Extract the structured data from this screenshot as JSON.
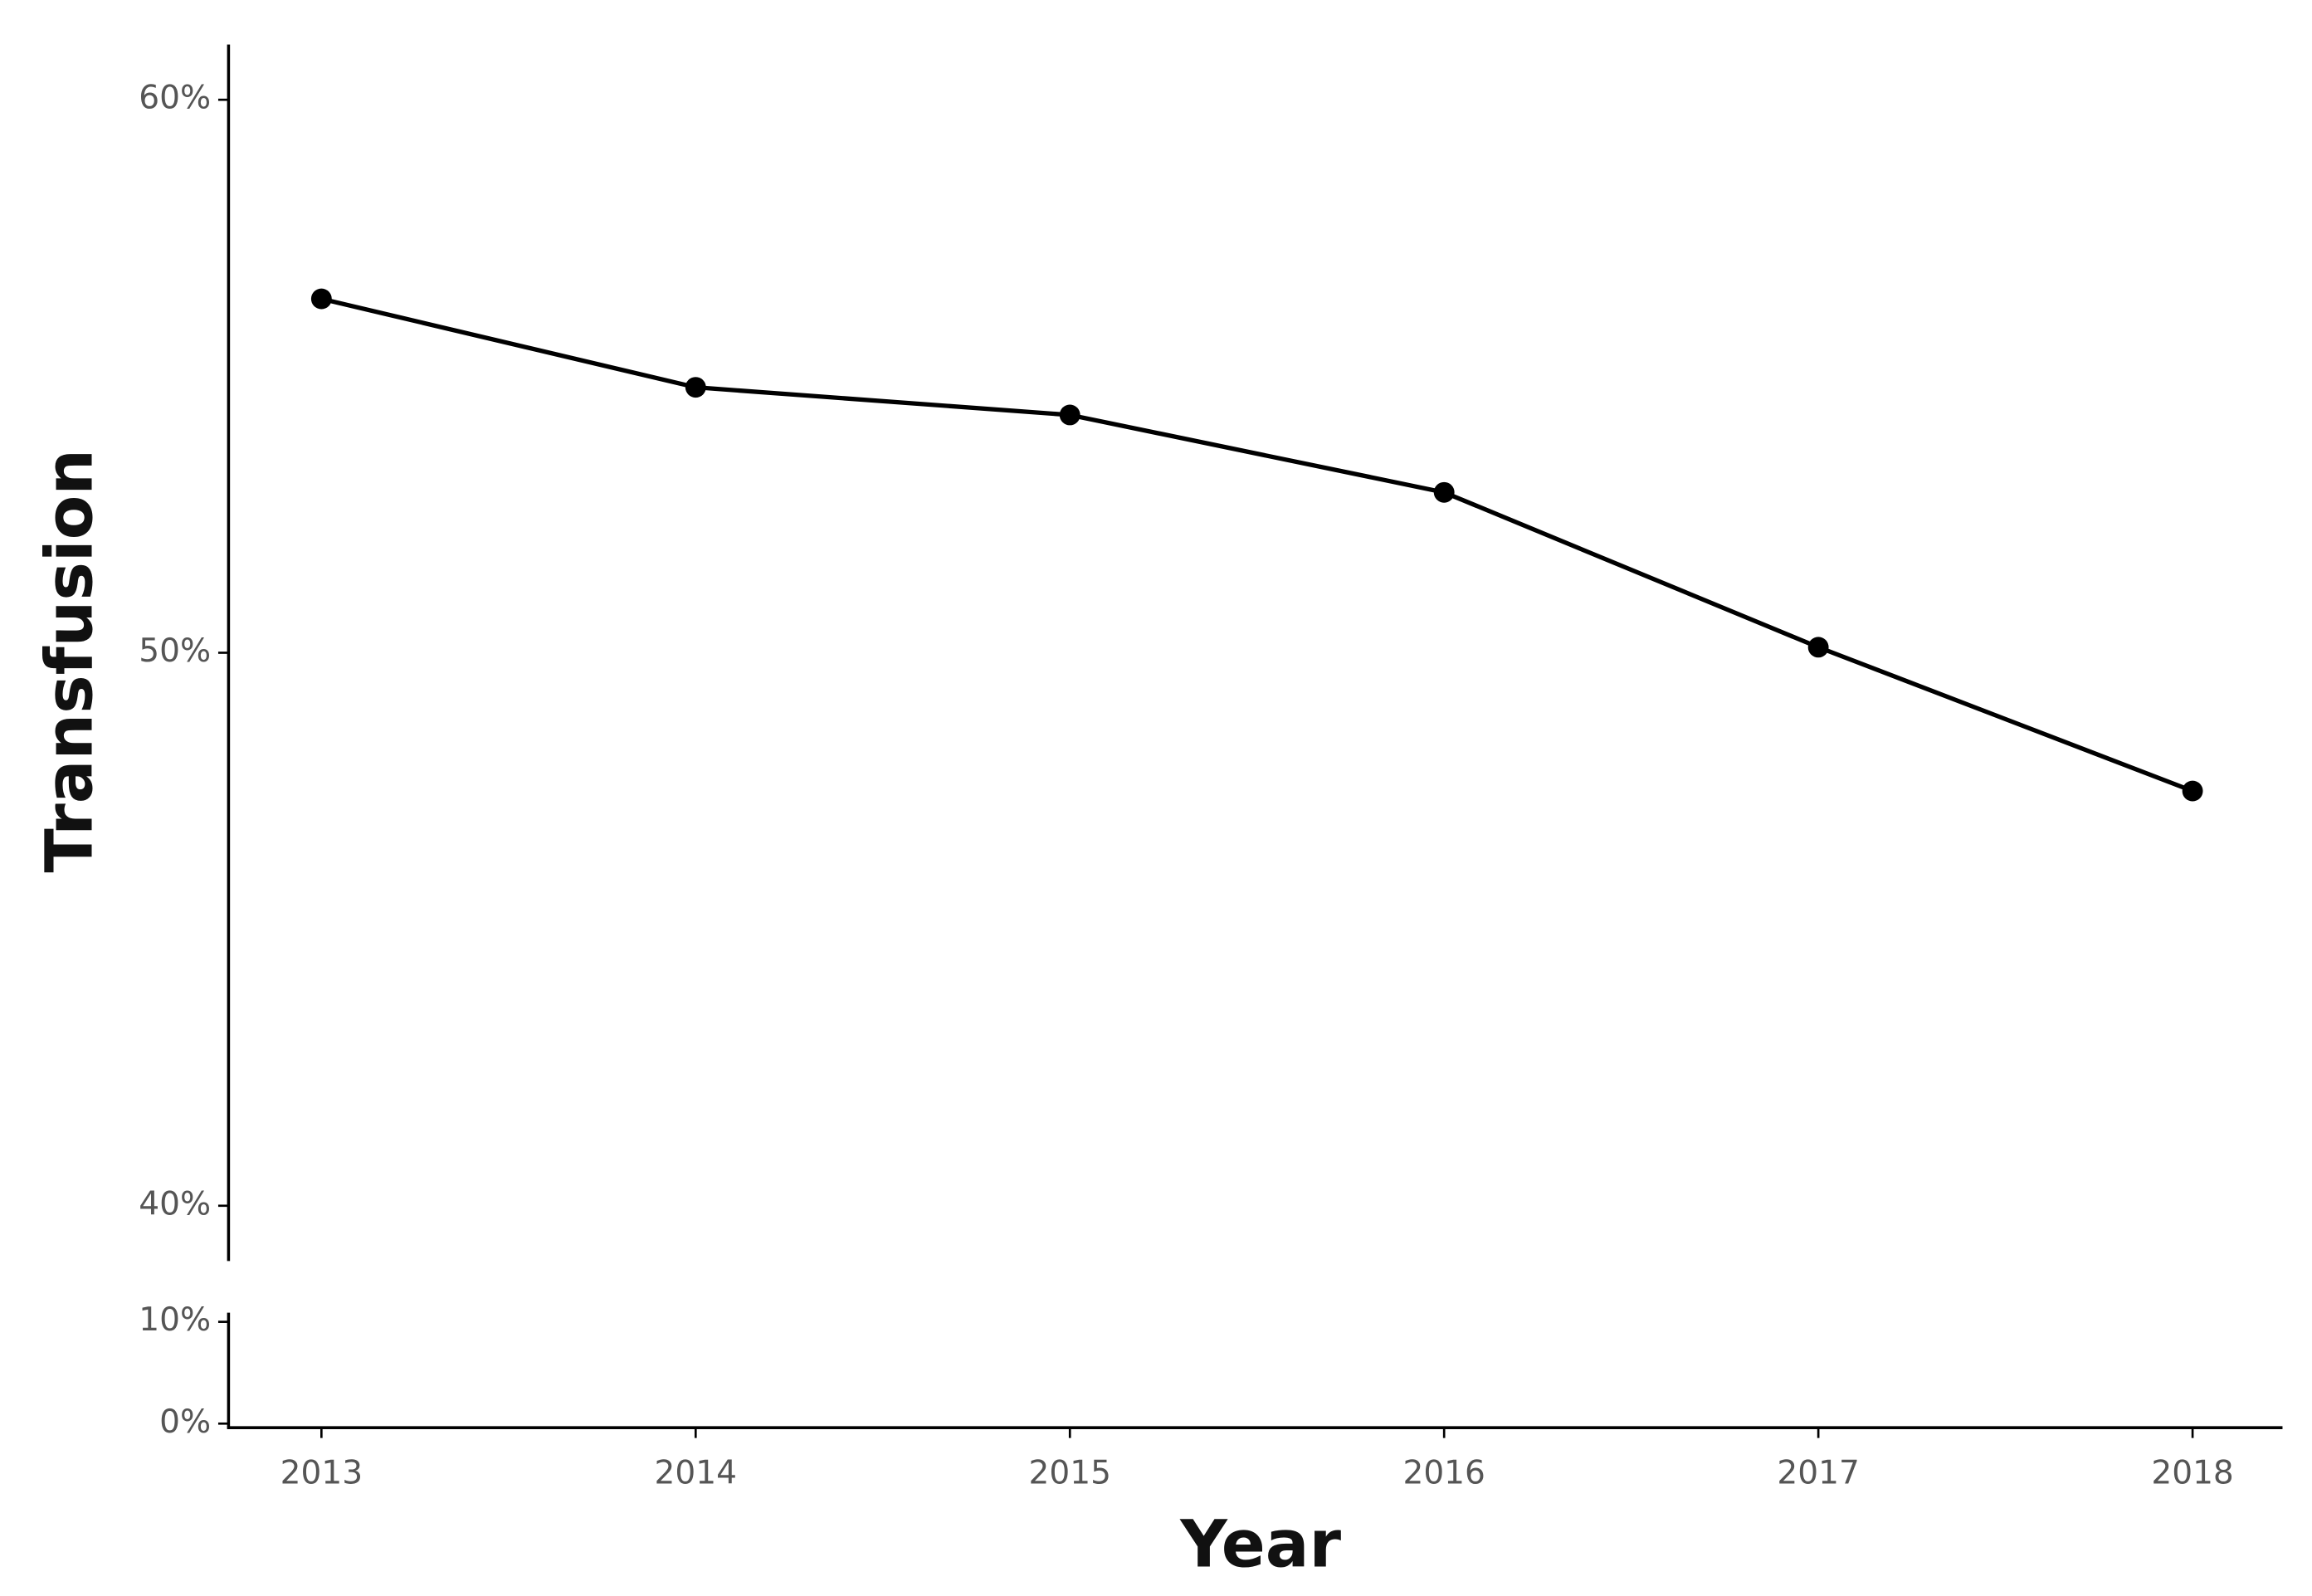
{
  "chart_data": {
    "type": "line",
    "x_label": "Year",
    "y_label": "Transfusion",
    "categories": [
      "2013",
      "2014",
      "2015",
      "2016",
      "2017",
      "2018"
    ],
    "series": [
      {
        "color": "#000000",
        "values": [
          56.4,
          54.8,
          54.3,
          52.9,
          50.1,
          47.5
        ]
      }
    ],
    "ylim": [
      39,
      61
    ],
    "yticks": [
      {
        "value": 40,
        "label": "40%"
      },
      {
        "value": 50,
        "label": "50%"
      },
      {
        "value": 60,
        "label": "60%"
      }
    ],
    "lower_axis": {
      "ylim": [
        -0.4,
        10.9
      ],
      "yticks": [
        {
          "value": 0,
          "label": "0%"
        },
        {
          "value": 10,
          "label": "10%"
        }
      ]
    },
    "grid": false
  }
}
